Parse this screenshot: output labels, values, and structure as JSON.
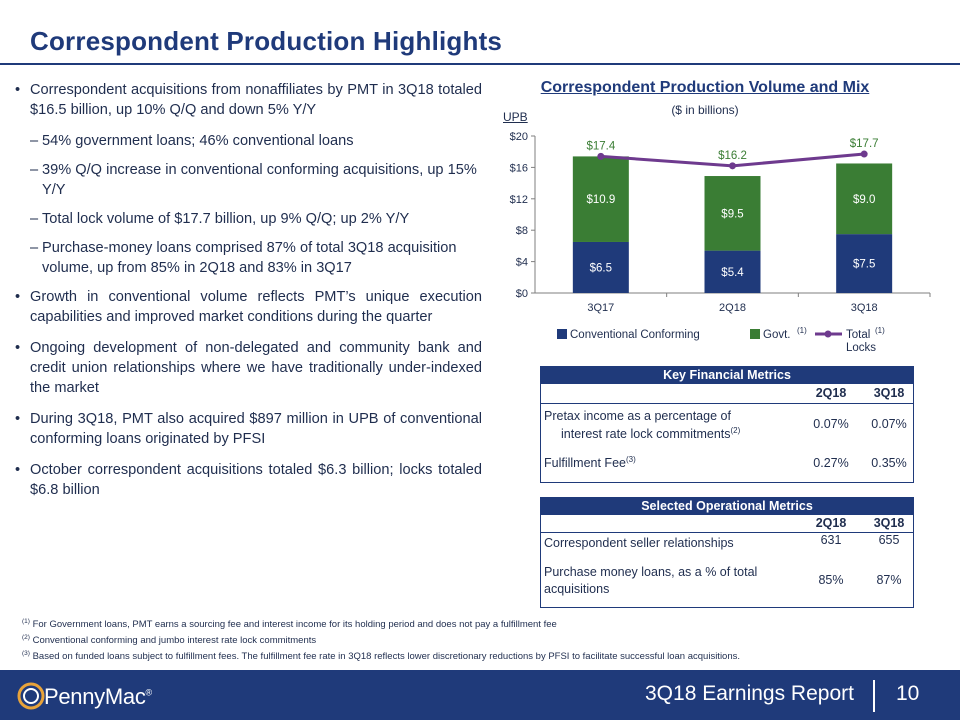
{
  "page": {
    "title": "Correspondent Production Highlights",
    "report_label": "3Q18 Earnings Report",
    "page_number": "10",
    "brand_name": "PennyMac",
    "brand_mark": "®"
  },
  "bullets": {
    "b1": "Correspondent acquisitions from nonaffiliates by PMT in 3Q18 totaled $16.5 billion, up 10% Q/Q and down 5% Y/Y",
    "b1_subs": [
      "54% government loans; 46% conventional loans",
      "39% Q/Q increase in conventional conforming acquisitions, up 15% Y/Y",
      "Total lock volume of $17.7 billion, up 9% Q/Q; up 2% Y/Y",
      "Purchase-money loans comprised 87% of total 3Q18 acquisition volume, up from 85% in 2Q18 and 83% in 3Q17"
    ],
    "b2": "Growth in conventional volume reflects PMT’s unique execution capabilities and improved market conditions during the quarter",
    "b3": "Ongoing development of non-delegated and community bank and credit union relationships where we have traditionally under-indexed the market",
    "b4": "During 3Q18, PMT also acquired $897 million in UPB of conventional conforming loans originated by PFSI",
    "b5": "October correspondent acquisitions totaled $6.3 billion; locks totaled $6.8 billion"
  },
  "chart_data": {
    "type": "bar",
    "title": "Correspondent Production Volume and Mix",
    "subtitle": "($ in billions)",
    "ylabel": "UPB",
    "categories": [
      "3Q17",
      "2Q18",
      "3Q18"
    ],
    "ylim": [
      0,
      20
    ],
    "yticks": [
      "$0",
      "$4",
      "$8",
      "$12",
      "$16",
      "$20"
    ],
    "ytick_values": [
      0,
      4,
      8,
      12,
      16,
      20
    ],
    "series": [
      {
        "name": "Conventional Conforming",
        "values": [
          6.5,
          5.4,
          7.5
        ],
        "labels": [
          "$6.5",
          "$5.4",
          "$7.5"
        ],
        "color": "#1f3a7a"
      },
      {
        "name": "Govt.",
        "sup": "(1)",
        "values": [
          10.9,
          9.5,
          9.0
        ],
        "labels": [
          "$10.9",
          "$9.5",
          "$9.0"
        ],
        "color": "#3a7d34"
      },
      {
        "name": "Total Locks",
        "sup": "(1)",
        "values": [
          17.4,
          16.2,
          17.7
        ],
        "labels": [
          "$17.4",
          "$16.2",
          "$17.7"
        ],
        "color": "#6e3a8e",
        "kind": "line"
      }
    ]
  },
  "key_financial": {
    "header": "Key Financial Metrics",
    "col1": "2Q18",
    "col2": "3Q18",
    "rows": [
      {
        "label_a": "Pretax income as a percentage of",
        "label_b": "interest rate lock commitments",
        "sup": "(2)",
        "v1": "0.07%",
        "v2": "0.07%"
      },
      {
        "label_a": "Fulfillment Fee",
        "sup": "(3)",
        "v1": "0.27%",
        "v2": "0.35%"
      }
    ]
  },
  "operational": {
    "header": "Selected Operational Metrics",
    "col1": "2Q18",
    "col2": "3Q18",
    "rows": [
      {
        "label_a": "Correspondent seller relationships",
        "v1": "631",
        "v2": "655"
      },
      {
        "label_a": "Purchase money loans, as a % of total",
        "label_b": "acquisitions",
        "v1": "85%",
        "v2": "87%"
      }
    ]
  },
  "footnotes": [
    {
      "mark": "(1)",
      "text": "For Government loans, PMT earns a sourcing fee and interest income for its holding period and does not pay a fulfillment fee"
    },
    {
      "mark": "(2)",
      "text": "Conventional conforming and jumbo interest rate lock commitments"
    },
    {
      "mark": "(3)",
      "text": "Based on funded loans subject to fulfillment fees. The fulfillment fee rate in 3Q18 reflects lower discretionary reductions by PFSI to facilitate successful loan acquisitions."
    }
  ]
}
